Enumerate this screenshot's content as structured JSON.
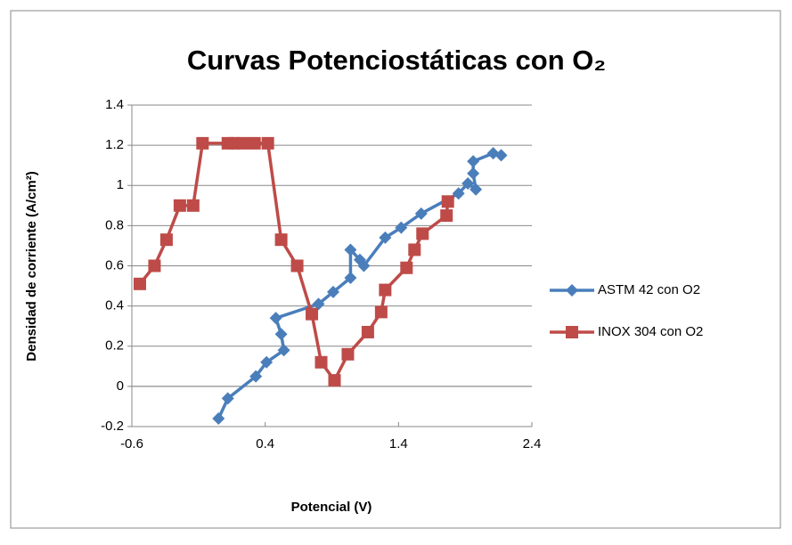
{
  "chart_data": {
    "type": "scatter",
    "title": "Curvas Potenciostáticas con O₂",
    "x_label": "Potencial (V)",
    "y_label": "Densidad de corriente (A/cm²)",
    "xlim": [
      -0.6,
      2.4
    ],
    "xticks": [
      -0.6,
      0.4,
      1.4,
      2.4
    ],
    "ylim": [
      -0.2,
      1.4
    ],
    "yticks": [
      -0.2,
      0,
      0.2,
      0.4,
      0.6,
      0.8,
      1,
      1.2,
      1.4
    ],
    "grid": true,
    "legend": "right",
    "series": [
      {
        "name": "ASTM 42 con O2",
        "color": "#4a7ebb",
        "marker": "diamond",
        "x": [
          0.05,
          0.12,
          0.33,
          0.41,
          0.54,
          0.52,
          0.48,
          0.8,
          0.91,
          1.04,
          1.04,
          1.11,
          1.14,
          1.3,
          1.42,
          1.57,
          1.85,
          1.92,
          1.98,
          1.96,
          1.96,
          2.11,
          2.17
        ],
        "values": [
          -0.16,
          -0.06,
          0.05,
          0.12,
          0.18,
          0.26,
          0.34,
          0.41,
          0.47,
          0.54,
          0.68,
          0.63,
          0.6,
          0.74,
          0.79,
          0.86,
          0.96,
          1.01,
          0.98,
          1.06,
          1.12,
          1.16,
          1.15
        ]
      },
      {
        "name": "INOX 304 con O2",
        "color": "#be4b48",
        "marker": "square",
        "x": [
          -0.54,
          -0.43,
          -0.34,
          -0.24,
          -0.14,
          -0.07,
          0.12,
          0.17,
          0.23,
          0.32,
          0.42,
          0.52,
          0.64,
          0.75,
          0.82,
          0.92,
          1.02,
          1.17,
          1.27,
          1.3,
          1.46,
          1.52,
          1.58,
          1.76,
          1.77
        ],
        "values": [
          0.51,
          0.6,
          0.73,
          0.9,
          0.9,
          1.21,
          1.21,
          1.21,
          1.21,
          1.21,
          1.21,
          0.73,
          0.6,
          0.36,
          0.12,
          0.03,
          0.16,
          0.27,
          0.37,
          0.48,
          0.59,
          0.68,
          0.76,
          0.85,
          0.92
        ]
      }
    ]
  }
}
